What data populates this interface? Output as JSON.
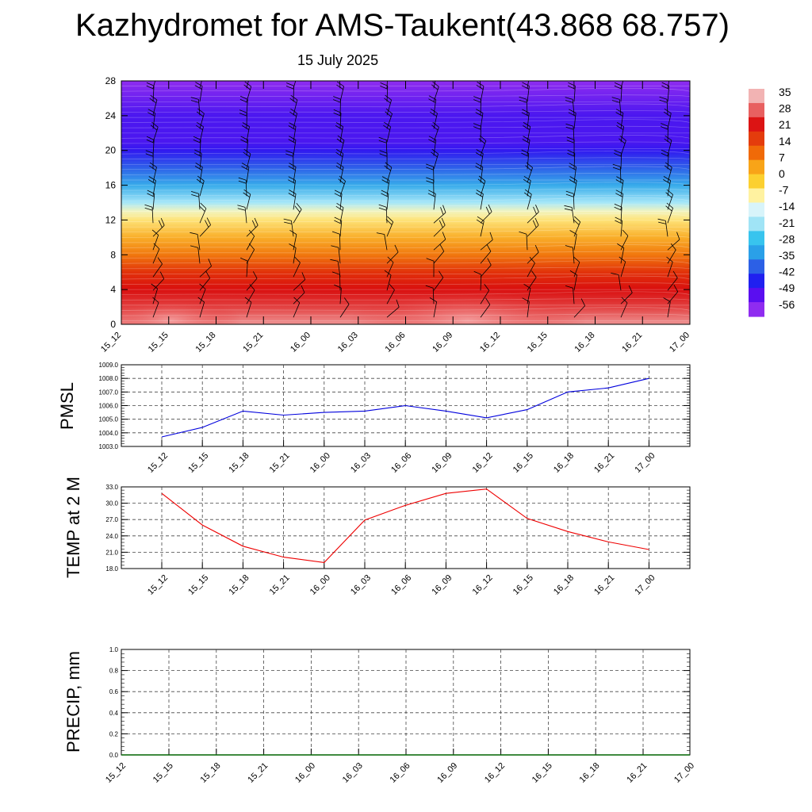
{
  "title": "Kazhydromet for AMS-Taukent(43.868 68.757)",
  "subtitle": "15 July 2025",
  "colors": {
    "pmsl_line": "#0000dd",
    "temp_line": "#ee0000",
    "precip_line": "#006400",
    "grid": "#555555"
  },
  "chart_data": [
    {
      "type": "heatmap",
      "description_of_field": "upper-air temperature cross-section with wind barbs",
      "x_categories": [
        "15_12",
        "15_15",
        "15_18",
        "15_21",
        "16_00",
        "16_03",
        "16_06",
        "16_09",
        "16_12",
        "16_15",
        "16_18",
        "16_21",
        "17_00"
      ],
      "y_ticks": [
        0,
        4,
        8,
        12,
        16,
        20,
        24,
        28
      ],
      "ylim": [
        0,
        28
      ],
      "colorbar": {
        "labels": [
          "35",
          "28",
          "21",
          "14",
          "7",
          "0",
          "-7",
          "-14",
          "-21",
          "-28",
          "-35",
          "-42",
          "-49",
          "-56"
        ],
        "colors": [
          "#f2b3b3",
          "#e86060",
          "#dc1414",
          "#e43c0c",
          "#f06a08",
          "#f8a418",
          "#fcd030",
          "#fff2a0",
          "#d8f4fa",
          "#a0e4f6",
          "#38c4ee",
          "#2aa0e8",
          "#2c60e6",
          "#2020f0",
          "#5a0ef0",
          "#8f2cf0"
        ]
      },
      "levels_km": [
        0,
        2,
        4,
        6,
        8,
        10,
        12,
        13,
        14,
        16,
        18,
        20,
        21,
        24,
        28
      ],
      "temperatures": [
        34,
        30,
        24,
        16,
        8,
        1,
        -7,
        -11,
        -17,
        -31,
        -45,
        -55,
        -58,
        -58,
        -62
      ]
    },
    {
      "type": "line",
      "ylabel": "PMSL",
      "x": [
        "15_12",
        "15_15",
        "15_18",
        "15_21",
        "16_00",
        "16_03",
        "16_06",
        "16_09",
        "16_12",
        "16_15",
        "16_18",
        "16_21",
        "17_00"
      ],
      "y_ticks": [
        "1009.0",
        "1008.0",
        "1007.0",
        "1006.0",
        "1005.0",
        "1004.0",
        "1003.0"
      ],
      "ylim": [
        1003.0,
        1009.0
      ],
      "values": [
        1003.7,
        1004.4,
        1005.6,
        1005.3,
        1005.5,
        1005.6,
        1006.0,
        1005.6,
        1005.1,
        1005.7,
        1007.0,
        1007.3,
        1008.0
      ]
    },
    {
      "type": "line",
      "ylabel": "TEMP at 2 M",
      "x": [
        "15_12",
        "15_15",
        "15_18",
        "15_21",
        "16_00",
        "16_03",
        "16_06",
        "16_09",
        "16_12",
        "16_15",
        "16_18",
        "16_21",
        "17_00"
      ],
      "y_ticks": [
        "33.0",
        "30.0",
        "27.0",
        "24.0",
        "21.0",
        "18.0"
      ],
      "ylim": [
        18.0,
        33.0
      ],
      "values": [
        31.8,
        26.0,
        22.1,
        20.1,
        19.1,
        26.9,
        29.6,
        31.8,
        32.6,
        27.2,
        24.8,
        22.9,
        21.5
      ]
    },
    {
      "type": "line",
      "ylabel": "PRECIP, mm",
      "x": [
        "15_12",
        "15_15",
        "15_18",
        "15_21",
        "16_00",
        "16_03",
        "16_06",
        "16_09",
        "16_12",
        "16_15",
        "16_18",
        "16_21",
        "17_00"
      ],
      "y_ticks": [
        "1.0",
        "0.8",
        "0.6",
        "0.4",
        "0.2",
        "0.0"
      ],
      "ylim": [
        0.0,
        1.0
      ],
      "values": [
        0,
        0,
        0,
        0,
        0,
        0,
        0,
        0,
        0,
        0,
        0,
        0,
        0
      ]
    }
  ]
}
